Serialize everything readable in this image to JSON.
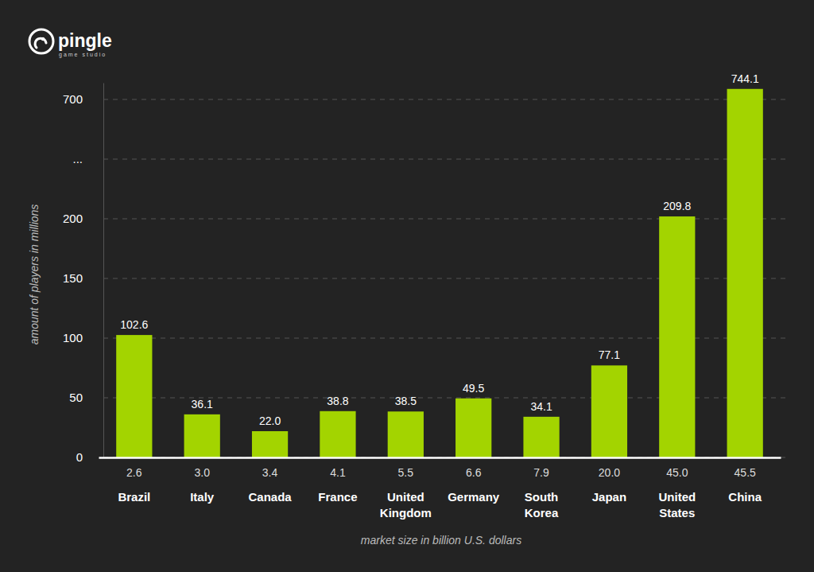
{
  "logo": {
    "name": "pingle",
    "tagline": "game studio"
  },
  "chart_data": {
    "type": "bar",
    "categories": [
      "Brazil",
      "Italy",
      "Canada",
      "France",
      "United Kingdom",
      "Germany",
      "South Korea",
      "Japan",
      "United States",
      "China"
    ],
    "values": [
      102.6,
      36.1,
      22.0,
      38.8,
      38.5,
      49.5,
      34.1,
      77.1,
      209.8,
      744.1
    ],
    "value_labels": [
      "102.6",
      "36.1",
      "22.0",
      "38.8",
      "38.5",
      "49.5",
      "34.1",
      "77.1",
      "209.8",
      "744.1"
    ],
    "market_size": [
      2.6,
      {
        "value": 3,
        "label": "3.0"
      },
      3.4,
      4.1,
      5.5,
      6.6,
      7.9,
      {
        "value": 20,
        "label": "20.0"
      },
      {
        "value": 45,
        "label": "45.0"
      },
      45.5
    ],
    "x_label": "market size in billion U.S. dollars",
    "y_label": "amount of players in millions",
    "color": "#a3d400",
    "ylim": [
      0,
      770
    ],
    "yticks": [
      0,
      50,
      100,
      150,
      200,
      {
        "value": 450,
        "label": "..."
      },
      700
    ],
    "grid": true,
    "data_labels": true
  }
}
